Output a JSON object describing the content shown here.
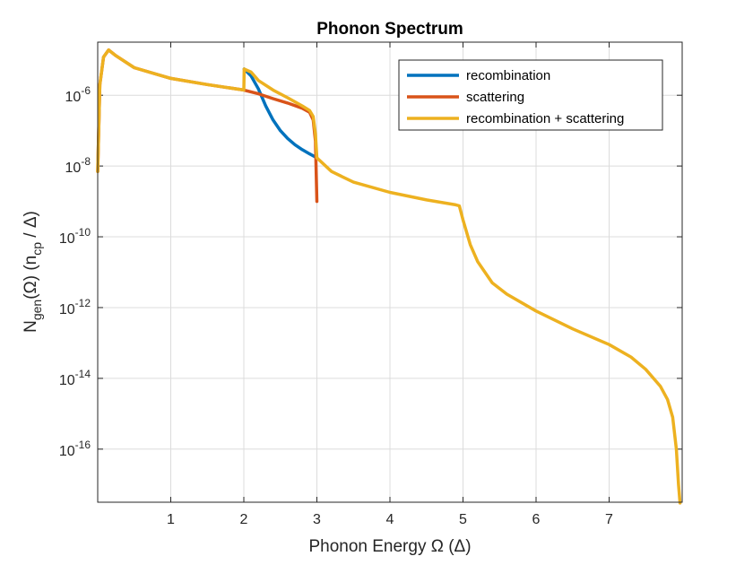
{
  "chart_data": {
    "type": "line",
    "title": "Phonon Spectrum",
    "xlabel": "Phonon Energy Ω (Δ)",
    "ylabel": {
      "main": "N",
      "sub": "gen",
      "mid": "(Ω) (n",
      "sub2": "cp",
      "end": " / Δ)"
    },
    "xlim": [
      0,
      8
    ],
    "ylim_log10": [
      -17.5,
      -4.5
    ],
    "y_scale": "log",
    "grid": true,
    "legend_position": "top-right",
    "x_ticks": [
      1,
      2,
      3,
      4,
      5,
      6,
      7
    ],
    "y_ticks": [
      {
        "base": "10",
        "exp": "-6",
        "value": 1e-06
      },
      {
        "base": "10",
        "exp": "-8",
        "value": 1e-08
      },
      {
        "base": "10",
        "exp": "-10",
        "value": 1e-10
      },
      {
        "base": "10",
        "exp": "-12",
        "value": 1e-12
      },
      {
        "base": "10",
        "exp": "-14",
        "value": 1e-14
      },
      {
        "base": "10",
        "exp": "-16",
        "value": 1e-16
      }
    ],
    "series": [
      {
        "name": "recombination",
        "color": "#0072bd",
        "points": [
          [
            2.005,
            5.5e-06
          ],
          [
            2.1,
            3.5e-06
          ],
          [
            2.2,
            1.5e-06
          ],
          [
            2.3,
            5e-07
          ],
          [
            2.4,
            2e-07
          ],
          [
            2.5,
            1e-07
          ],
          [
            2.6,
            6e-08
          ],
          [
            2.7,
            4e-08
          ],
          [
            2.8,
            2.9e-08
          ],
          [
            2.9,
            2.2e-08
          ],
          [
            3.0,
            1.7e-08
          ]
        ]
      },
      {
        "name": "scattering",
        "color": "#d95319",
        "points": [
          [
            0.0,
            7e-09
          ],
          [
            0.03,
            2e-06
          ],
          [
            0.08,
            1.2e-05
          ],
          [
            0.15,
            1.9e-05
          ],
          [
            0.25,
            1.3e-05
          ],
          [
            0.5,
            6e-06
          ],
          [
            1.0,
            3e-06
          ],
          [
            1.5,
            2e-06
          ],
          [
            2.0,
            1.4e-06
          ],
          [
            2.2,
            1.1e-06
          ],
          [
            2.4,
            8e-07
          ],
          [
            2.6,
            6e-07
          ],
          [
            2.8,
            4.3e-07
          ],
          [
            2.9,
            3.3e-07
          ],
          [
            2.95,
            2e-07
          ],
          [
            2.98,
            5e-08
          ],
          [
            3.0,
            1e-09
          ]
        ]
      },
      {
        "name": "recombination + scattering",
        "color": "#edb120",
        "points": [
          [
            0.0,
            7e-09
          ],
          [
            0.03,
            2e-06
          ],
          [
            0.08,
            1.2e-05
          ],
          [
            0.15,
            1.9e-05
          ],
          [
            0.25,
            1.3e-05
          ],
          [
            0.5,
            6e-06
          ],
          [
            1.0,
            3e-06
          ],
          [
            1.5,
            2e-06
          ],
          [
            2.0,
            1.4e-06
          ],
          [
            2.005,
            5.5e-06
          ],
          [
            2.1,
            4.5e-06
          ],
          [
            2.2,
            2.6e-06
          ],
          [
            2.4,
            1.4e-06
          ],
          [
            2.6,
            8.5e-07
          ],
          [
            2.8,
            5e-07
          ],
          [
            2.9,
            3.7e-07
          ],
          [
            2.95,
            2.5e-07
          ],
          [
            2.98,
            8e-08
          ],
          [
            3.0,
            1.7e-08
          ],
          [
            3.2,
            7e-09
          ],
          [
            3.5,
            3.5e-09
          ],
          [
            4.0,
            1.8e-09
          ],
          [
            4.5,
            1.1e-09
          ],
          [
            4.9,
            8e-10
          ],
          [
            4.95,
            7.5e-10
          ],
          [
            5.0,
            3e-10
          ],
          [
            5.1,
            6e-11
          ],
          [
            5.2,
            2e-11
          ],
          [
            5.4,
            5e-12
          ],
          [
            5.6,
            2.4e-12
          ],
          [
            6.0,
            8e-13
          ],
          [
            6.5,
            2.5e-13
          ],
          [
            7.0,
            9e-14
          ],
          [
            7.3,
            4e-14
          ],
          [
            7.5,
            1.8e-14
          ],
          [
            7.7,
            6e-15
          ],
          [
            7.8,
            2.5e-15
          ],
          [
            7.87,
            8e-16
          ],
          [
            7.92,
            1e-16
          ],
          [
            7.95,
            1e-17
          ],
          [
            7.97,
            3e-18
          ]
        ]
      }
    ]
  }
}
